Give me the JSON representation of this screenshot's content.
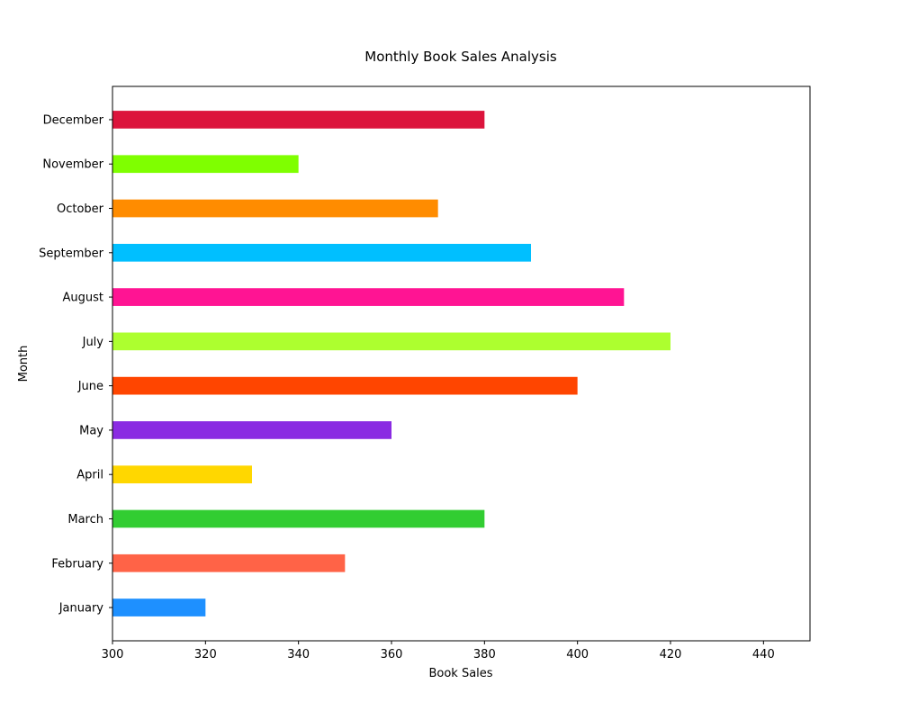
{
  "chart_data": {
    "type": "bar",
    "orientation": "horizontal",
    "title": "Monthly Book Sales Analysis",
    "xlabel": "Book Sales",
    "ylabel": "Month",
    "categories": [
      "January",
      "February",
      "March",
      "April",
      "May",
      "June",
      "July",
      "August",
      "September",
      "October",
      "November",
      "December"
    ],
    "values": [
      320,
      350,
      380,
      330,
      360,
      400,
      420,
      410,
      390,
      370,
      340,
      380
    ],
    "colors": [
      "#1E90FF",
      "#FF6347",
      "#32CD32",
      "#FFD700",
      "#8A2BE2",
      "#FF4500",
      "#ADFF2F",
      "#FF1493",
      "#00BFFF",
      "#FF8C00",
      "#7FFF00",
      "#DC143C"
    ],
    "xlim": [
      300,
      450
    ],
    "xticks": [
      300,
      320,
      340,
      360,
      380,
      400,
      420,
      440
    ],
    "grid": false,
    "legend": "none"
  }
}
